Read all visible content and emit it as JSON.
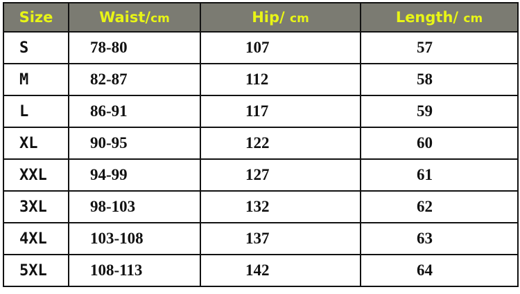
{
  "header": {
    "size": "Size",
    "waist": "Waist/",
    "waist_unit": "cm",
    "hip": "Hip/ ",
    "hip_unit": "cm",
    "length": "Length/ ",
    "length_unit": "cm"
  },
  "colors": {
    "header_bg": "#7b7b72",
    "header_text": "#e8f516"
  },
  "rows": [
    {
      "size": "S",
      "waist": "78-80",
      "hip": "107",
      "length": "57"
    },
    {
      "size": "M",
      "waist": "82-87",
      "hip": "112",
      "length": "58"
    },
    {
      "size": "L",
      "waist": "86-91",
      "hip": "117",
      "length": "59"
    },
    {
      "size": "XL",
      "waist": "90-95",
      "hip": "122",
      "length": "60"
    },
    {
      "size": "XXL",
      "waist": "94-99",
      "hip": "127",
      "length": "61"
    },
    {
      "size": "3XL",
      "waist": "98-103",
      "hip": "132",
      "length": "62"
    },
    {
      "size": "4XL",
      "waist": "103-108",
      "hip": "137",
      "length": "63"
    },
    {
      "size": "5XL",
      "waist": "108-113",
      "hip": "142",
      "length": "64"
    }
  ]
}
